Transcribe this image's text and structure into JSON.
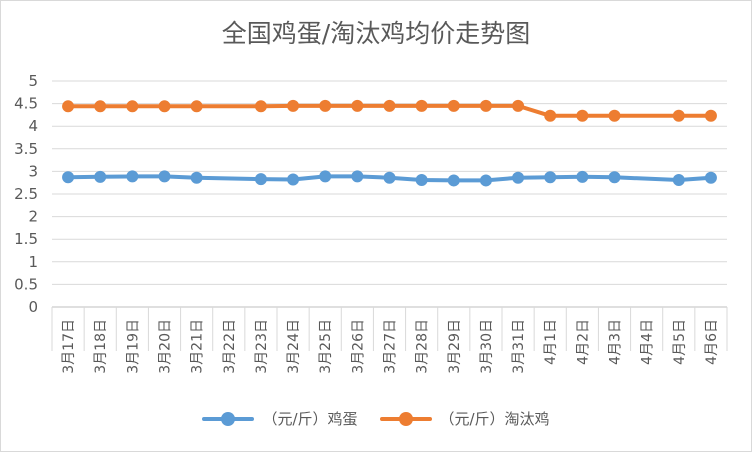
{
  "chart_data": {
    "type": "line",
    "title": "全国鸡蛋/淘汰鸡均价走势图",
    "categories": [
      "3月17日",
      "3月18日",
      "3月19日",
      "3月20日",
      "3月21日",
      "3月22日",
      "3月23日",
      "3月24日",
      "3月25日",
      "3月26日",
      "3月27日",
      "3月28日",
      "3月29日",
      "3月30日",
      "3月31日",
      "4月1日",
      "4月2日",
      "4月3日",
      "4月4日",
      "4月5日",
      "4月6日"
    ],
    "y_ticks": [
      "0",
      "0.5",
      "1",
      "1.5",
      "2",
      "2.5",
      "3",
      "3.5",
      "4",
      "4.5",
      "5"
    ],
    "ylim": [
      0,
      5
    ],
    "grid": true,
    "legend_position": "bottom",
    "series": [
      {
        "name": "（元/斤）鸡蛋",
        "color": "#5b9bd5",
        "values": [
          2.87,
          2.88,
          2.89,
          2.89,
          2.86,
          null,
          2.83,
          2.82,
          2.89,
          2.89,
          2.86,
          2.81,
          2.8,
          2.8,
          2.86,
          2.87,
          2.88,
          2.87,
          null,
          2.81,
          2.86
        ]
      },
      {
        "name": "（元/斤）淘汰鸡",
        "color": "#ed7d31",
        "values": [
          4.44,
          4.44,
          4.44,
          4.44,
          4.44,
          null,
          4.44,
          4.45,
          4.45,
          4.45,
          4.45,
          4.45,
          4.45,
          4.45,
          4.45,
          4.23,
          4.23,
          4.23,
          null,
          4.23,
          4.23
        ]
      }
    ]
  }
}
